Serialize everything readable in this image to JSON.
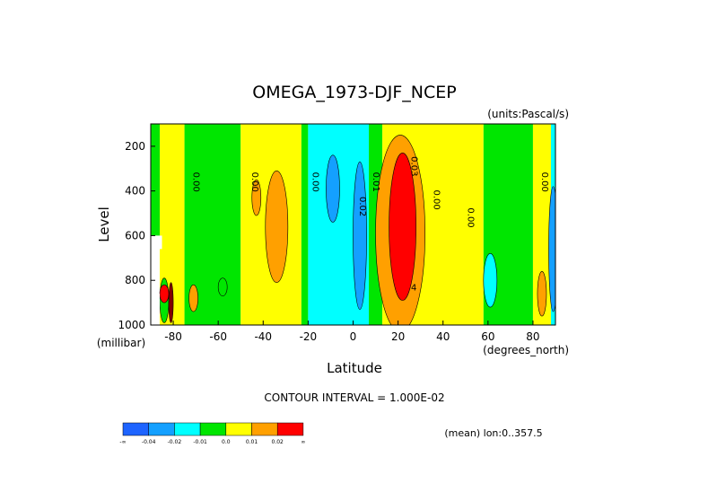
{
  "chart_data": {
    "type": "heatmap",
    "title": "OMEGA_1973-DJF_NCEP",
    "units": "(units:Pascal/s)",
    "xlabel": "Latitude",
    "ylabel": "Level",
    "x_units": "(degrees_north)",
    "y_units": "(millibar)",
    "xlim": [
      -90,
      90
    ],
    "ylim": [
      1000,
      100
    ],
    "x_ticks": [
      "-80",
      "-60",
      "-40",
      "-20",
      "0",
      "20",
      "40",
      "60",
      "80"
    ],
    "x_tick_values": [
      -80,
      -60,
      -40,
      -20,
      0,
      20,
      40,
      60,
      80
    ],
    "y_ticks": [
      "200",
      "400",
      "600",
      "800",
      "1000"
    ],
    "y_tick_values": [
      200,
      400,
      600,
      800,
      1000
    ],
    "contour_interval": "CONTOUR INTERVAL = 1.000E-02",
    "footer": "(mean) lon:0..357.5",
    "contour_labels": [
      {
        "text": "0.00",
        "lat": -71,
        "lev": 360
      },
      {
        "text": "0.00",
        "lat": -45,
        "lev": 360
      },
      {
        "text": "0.00",
        "lat": -18,
        "lev": 360
      },
      {
        "text": "0.02",
        "lat": 3,
        "lev": 470
      },
      {
        "text": "0.01",
        "lat": 9,
        "lev": 360
      },
      {
        "text": "0.03",
        "lat": 26,
        "lev": 290
      },
      {
        "text": "0.00",
        "lat": 36,
        "lev": 440
      },
      {
        "text": "0.00",
        "lat": 51,
        "lev": 520
      },
      {
        "text": "0.00",
        "lat": 84,
        "lev": 360
      },
      {
        "text": "4",
        "lat": 27,
        "lev": 845
      }
    ],
    "colorbar": {
      "colors": [
        "#1e64ff",
        "#14a0ff",
        "#00ffff",
        "#00e600",
        "#ffff00",
        "#ffa000",
        "#ff0000"
      ],
      "labels": [
        "-∞",
        "-0.04",
        "-0.02",
        "-0.01",
        "0.0",
        "0.01",
        "0.02",
        "∞"
      ]
    },
    "regions": [
      {
        "name": "band-green-south",
        "color": "#00e600",
        "lat": [
          -90,
          -86
        ],
        "lev": [
          100,
          600
        ]
      },
      {
        "name": "band-yellow-a",
        "color": "#ffff00",
        "lat": [
          -86,
          -75
        ],
        "lev": [
          100,
          1000
        ]
      },
      {
        "name": "band-green-b",
        "color": "#00e600",
        "lat": [
          -75,
          -50
        ],
        "lev": [
          100,
          1000
        ]
      },
      {
        "name": "band-yellow-c",
        "color": "#ffff00",
        "lat": [
          -50,
          -23
        ],
        "lev": [
          100,
          1000
        ]
      },
      {
        "name": "band-green-d",
        "color": "#00e600",
        "lat": [
          -23,
          -20
        ],
        "lev": [
          100,
          1000
        ]
      },
      {
        "name": "band-cyan-e",
        "color": "#00ffff",
        "lat": [
          -20,
          7
        ],
        "lev": [
          100,
          1000
        ]
      },
      {
        "name": "band-green-f",
        "color": "#00e600",
        "lat": [
          7,
          13
        ],
        "lev": [
          100,
          1000
        ]
      },
      {
        "name": "band-yellow-g",
        "color": "#ffff00",
        "lat": [
          13,
          58
        ],
        "lev": [
          100,
          1000
        ]
      },
      {
        "name": "band-green-h",
        "color": "#00e600",
        "lat": [
          58,
          80
        ],
        "lev": [
          100,
          1000
        ]
      },
      {
        "name": "band-yellow-i",
        "color": "#ffff00",
        "lat": [
          80,
          89
        ],
        "lev": [
          100,
          1000
        ]
      },
      {
        "name": "band-cyan-j",
        "color": "#00ffff",
        "lat": [
          88,
          90
        ],
        "lev": [
          100,
          1000
        ]
      }
    ],
    "blobs": [
      {
        "name": "orange-minus-35",
        "color": "#ffa000",
        "lat": -34,
        "lev": 560,
        "rlat": 5,
        "rlev": 250
      },
      {
        "name": "orange-minus-45",
        "color": "#ffa000",
        "lat": -43,
        "lev": 430,
        "rlat": 2,
        "rlev": 80
      },
      {
        "name": "blue-minus-10",
        "color": "#14a0ff",
        "lat": -9,
        "lev": 390,
        "rlat": 3,
        "rlev": 150
      },
      {
        "name": "blue-minus-2",
        "color": "#14a0ff",
        "lat": 3,
        "lev": 600,
        "rlat": 3,
        "rlev": 330
      },
      {
        "name": "green-minus-60",
        "color": "#00e600",
        "lat": -58,
        "lev": 830,
        "rlat": 2,
        "rlev": 40
      },
      {
        "name": "green-minus-86",
        "color": "#00e600",
        "lat": -84,
        "lev": 890,
        "rlat": 2,
        "rlev": 100
      },
      {
        "name": "orange-20",
        "color": "#ffa000",
        "lat": 21,
        "lev": 590,
        "rlat": 11,
        "rlev": 440
      },
      {
        "name": "red-22",
        "color": "#ff0000",
        "lat": 22,
        "lev": 560,
        "rlat": 6,
        "rlev": 330
      },
      {
        "name": "cyan-62",
        "color": "#00ffff",
        "lat": 61,
        "lev": 800,
        "rlat": 3,
        "rlev": 120
      },
      {
        "name": "orange-75",
        "color": "#ffa000",
        "lat": -71,
        "lev": 880,
        "rlat": 2,
        "rlev": 60
      },
      {
        "name": "orange-84",
        "color": "#ffa000",
        "lat": 84,
        "lev": 860,
        "rlat": 2,
        "rlev": 100
      },
      {
        "name": "blue-88",
        "color": "#14a0ff",
        "lat": 89,
        "lev": 660,
        "rlat": 2,
        "rlev": 280
      },
      {
        "name": "red-south",
        "color": "#ff0000",
        "lat": -84,
        "lev": 860,
        "rlat": 2,
        "rlev": 40
      },
      {
        "name": "darkred-south",
        "color": "#800000",
        "lat": -81,
        "lev": 900,
        "rlat": 1,
        "rlev": 90
      }
    ],
    "masked": [
      {
        "name": "missing-a",
        "lat": [
          -90,
          -85
        ],
        "lev": [
          600,
          660
        ]
      },
      {
        "name": "missing-b",
        "lat": [
          -90,
          -86
        ],
        "lev": [
          860,
          1000
        ]
      }
    ]
  }
}
